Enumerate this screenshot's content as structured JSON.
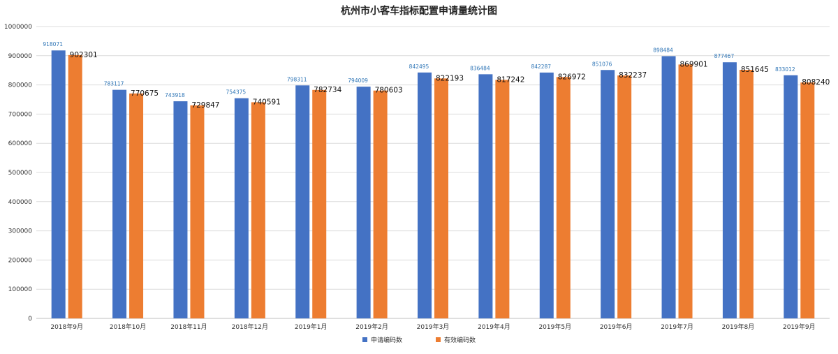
{
  "chart_data": {
    "type": "bar",
    "title": "杭州市小客车指标配置申请量统计图",
    "categories": [
      "2018年9月",
      "2018年10月",
      "2018年11月",
      "2018年12月",
      "2019年1月",
      "2019年2月",
      "2019年3月",
      "2019年4月",
      "2019年5月",
      "2019年6月",
      "2019年7月",
      "2019年8月",
      "2019年9月"
    ],
    "series": [
      {
        "name": "申请编码数",
        "color": "#4472C4",
        "label_color": "#2E75B6",
        "values": [
          918071,
          783117,
          743918,
          754375,
          798311,
          794009,
          842495,
          836484,
          842287,
          851076,
          898484,
          877467,
          833012
        ],
        "labels": [
          "918071",
          "783117",
          "743918",
          "754375",
          "798311",
          "794009",
          "842495",
          "836484",
          "842287",
          "851076",
          "898484",
          "877467",
          "833012"
        ]
      },
      {
        "name": "有效编码数",
        "color": "#ED7D31",
        "values": [
          902301,
          770675,
          729847,
          740591,
          782734,
          780603,
          822193,
          817242,
          826972,
          832237,
          869901,
          851645,
          808240
        ],
        "labels": [
          "902301",
          "770675",
          "729847",
          "740591",
          "782734",
          "780603",
          "822193",
          "817242",
          "826972",
          "832237",
          "869901",
          "851645",
          "808240"
        ]
      }
    ],
    "ylim": [
      0,
      1000000
    ],
    "y_ticks": [
      "0",
      "100000",
      "200000",
      "300000",
      "400000",
      "500000",
      "600000",
      "700000",
      "800000",
      "900000",
      "1000000"
    ],
    "grid": true,
    "legend_position": "bottom",
    "xlabel": "",
    "ylabel": ""
  }
}
